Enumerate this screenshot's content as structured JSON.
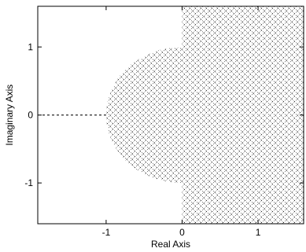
{
  "chart_data": {
    "type": "area",
    "title": "",
    "xlabel": "Real Axis",
    "ylabel": "Imaginary Axis",
    "xlim": [
      -1.9,
      1.6
    ],
    "ylim": [
      -1.6,
      1.6
    ],
    "xticks": [
      -1,
      0,
      1
    ],
    "yticks": [
      -1,
      0,
      1
    ],
    "xtick_labels": [
      "-1",
      "0",
      "1"
    ],
    "ytick_labels": [
      "-1",
      "0",
      "1"
    ],
    "grid": false,
    "regions": [
      {
        "kind": "half-plane",
        "description": "hatched region Re(s) >= 0",
        "x_min": 0
      },
      {
        "kind": "half-disk",
        "description": "hatched half-disk of radius 1 centered at origin, left of imaginary axis",
        "center": [
          0,
          0
        ],
        "radius": 1
      }
    ],
    "dashed_segment": {
      "x": [
        -1.9,
        -1
      ],
      "y": [
        0,
        0
      ]
    }
  },
  "colors": {
    "line": "#000000",
    "hatch": "#000000",
    "background": "#ffffff"
  }
}
